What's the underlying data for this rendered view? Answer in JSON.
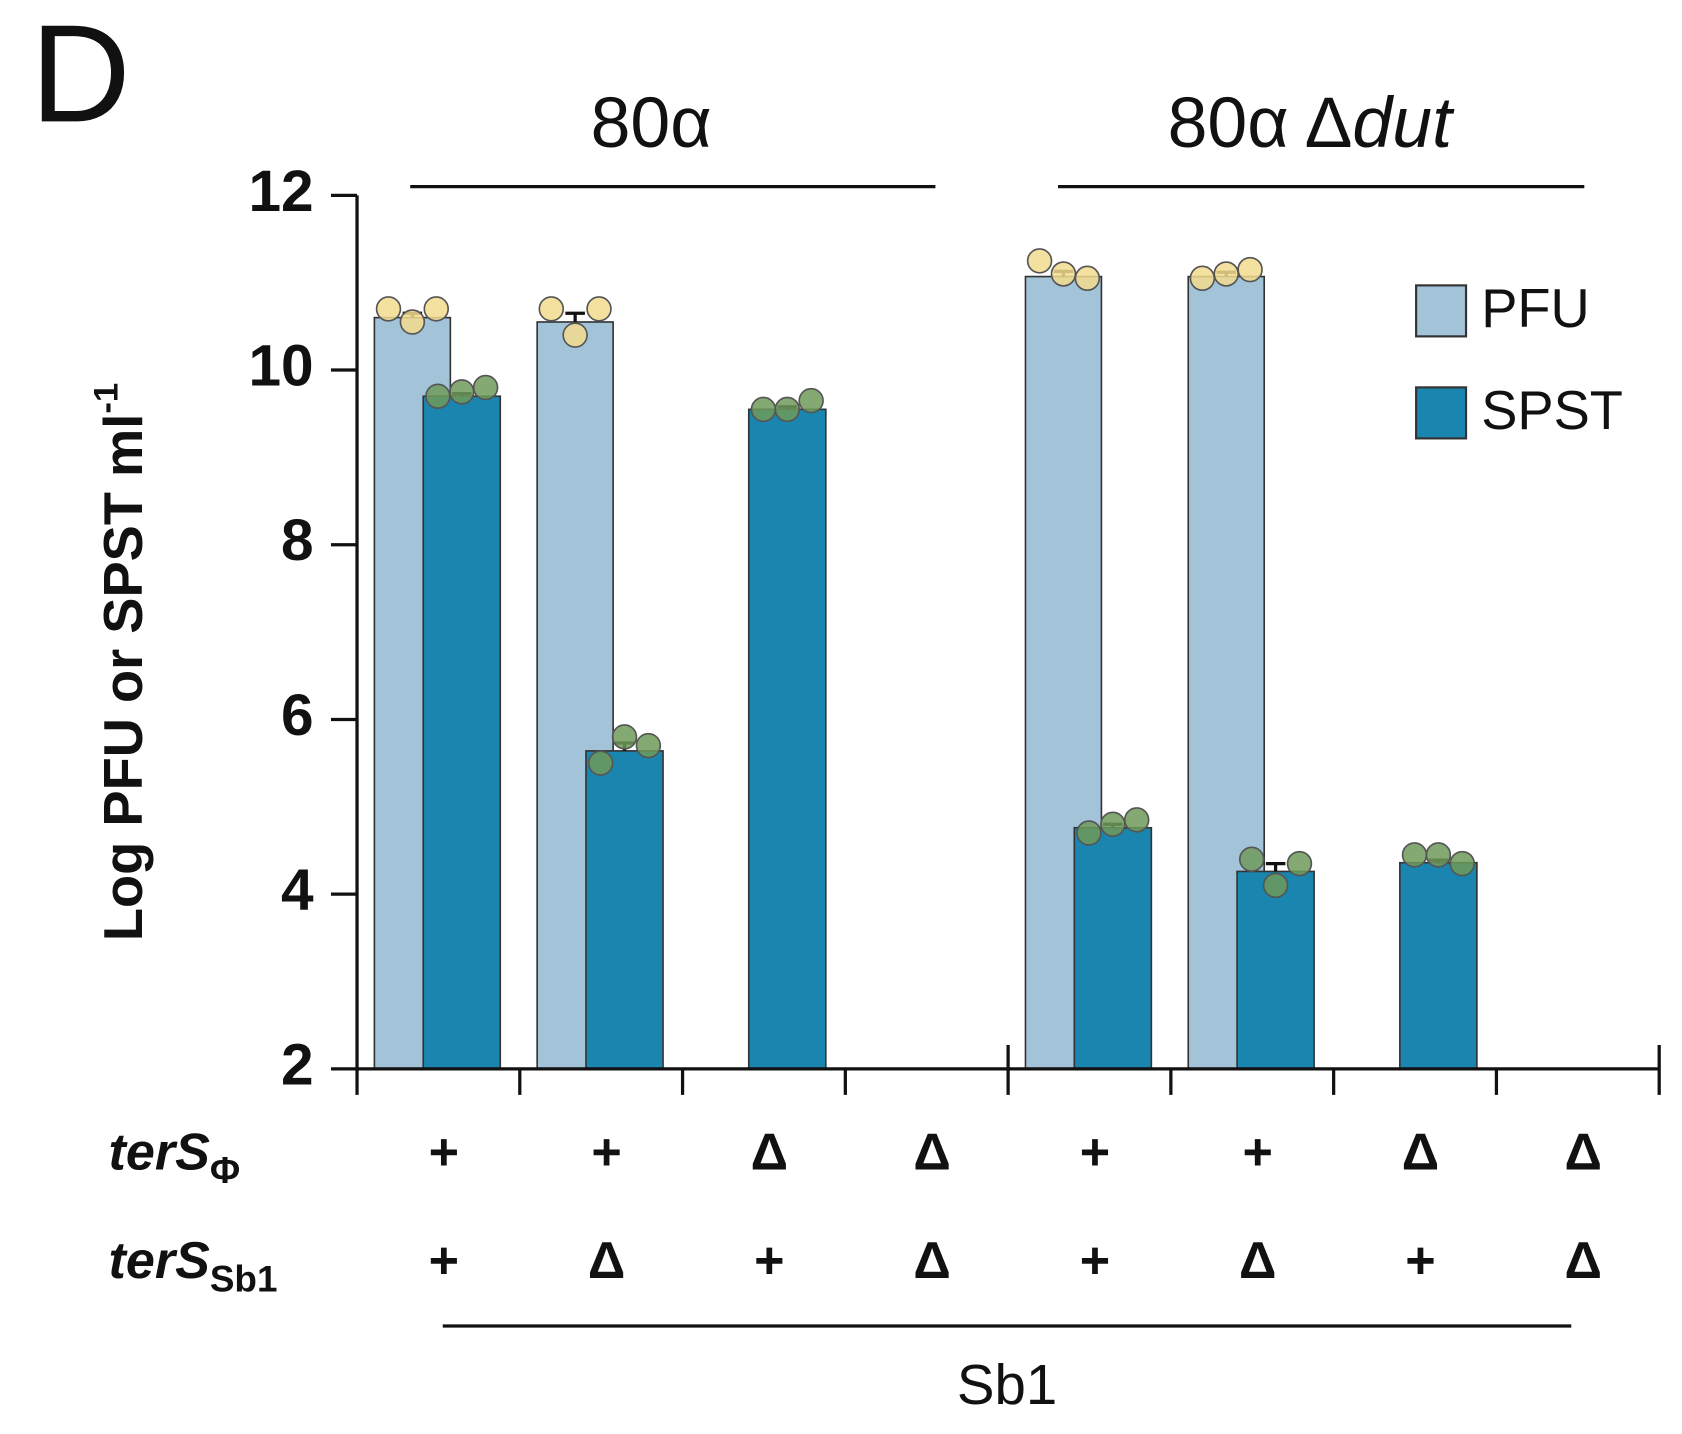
{
  "panel_label": "D",
  "chart_data": {
    "type": "bar",
    "y_label": "Log PFU or SPST ml",
    "y_label_superscript": "-1",
    "ylim": [
      2,
      12
    ],
    "yticks": [
      2,
      4,
      6,
      8,
      10,
      12
    ],
    "groups": [
      {
        "label": "80α"
      },
      {
        "label": "80α Δ",
        "italic": "dut"
      }
    ],
    "rows": [
      {
        "label": "terS",
        "subscript": "Φ",
        "values": [
          "+",
          "+",
          "Δ",
          "Δ",
          "+",
          "+",
          "Δ",
          "Δ"
        ]
      },
      {
        "label": "terS",
        "subscript": "Sb1",
        "values": [
          "+",
          "Δ",
          "+",
          "Δ",
          "+",
          "Δ",
          "+",
          "Δ"
        ]
      }
    ],
    "bottom_label": "Sb1",
    "legend": "top-right",
    "series": [
      {
        "name": "PFU",
        "color": "#a3c3d8",
        "point_color": "#f3dc8e",
        "values": [
          10.6,
          10.55,
          null,
          null,
          11.07,
          11.07,
          null,
          null
        ],
        "errors": [
          0.05,
          0.1,
          null,
          null,
          0.06,
          0.05,
          null,
          null
        ],
        "points": [
          [
            10.7,
            10.55,
            10.7
          ],
          [
            10.7,
            10.4,
            10.7
          ],
          null,
          null,
          [
            11.25,
            11.1,
            11.05
          ],
          [
            11.05,
            11.1,
            11.15
          ],
          null,
          null
        ]
      },
      {
        "name": "SPST",
        "color": "#1a86b0",
        "point_color": "#6f9a5a",
        "values": [
          9.7,
          5.64,
          9.55,
          null,
          4.76,
          4.26,
          4.36,
          null
        ],
        "errors": [
          0.03,
          0.09,
          0.03,
          null,
          0.04,
          0.09,
          0.03,
          null
        ],
        "points": [
          [
            9.7,
            9.75,
            9.8
          ],
          [
            5.5,
            5.8,
            5.7
          ],
          [
            9.55,
            9.55,
            9.65
          ],
          null,
          [
            4.7,
            4.8,
            4.85
          ],
          [
            4.4,
            4.1,
            4.35
          ],
          [
            4.45,
            4.45,
            4.35
          ],
          null
        ]
      }
    ]
  }
}
